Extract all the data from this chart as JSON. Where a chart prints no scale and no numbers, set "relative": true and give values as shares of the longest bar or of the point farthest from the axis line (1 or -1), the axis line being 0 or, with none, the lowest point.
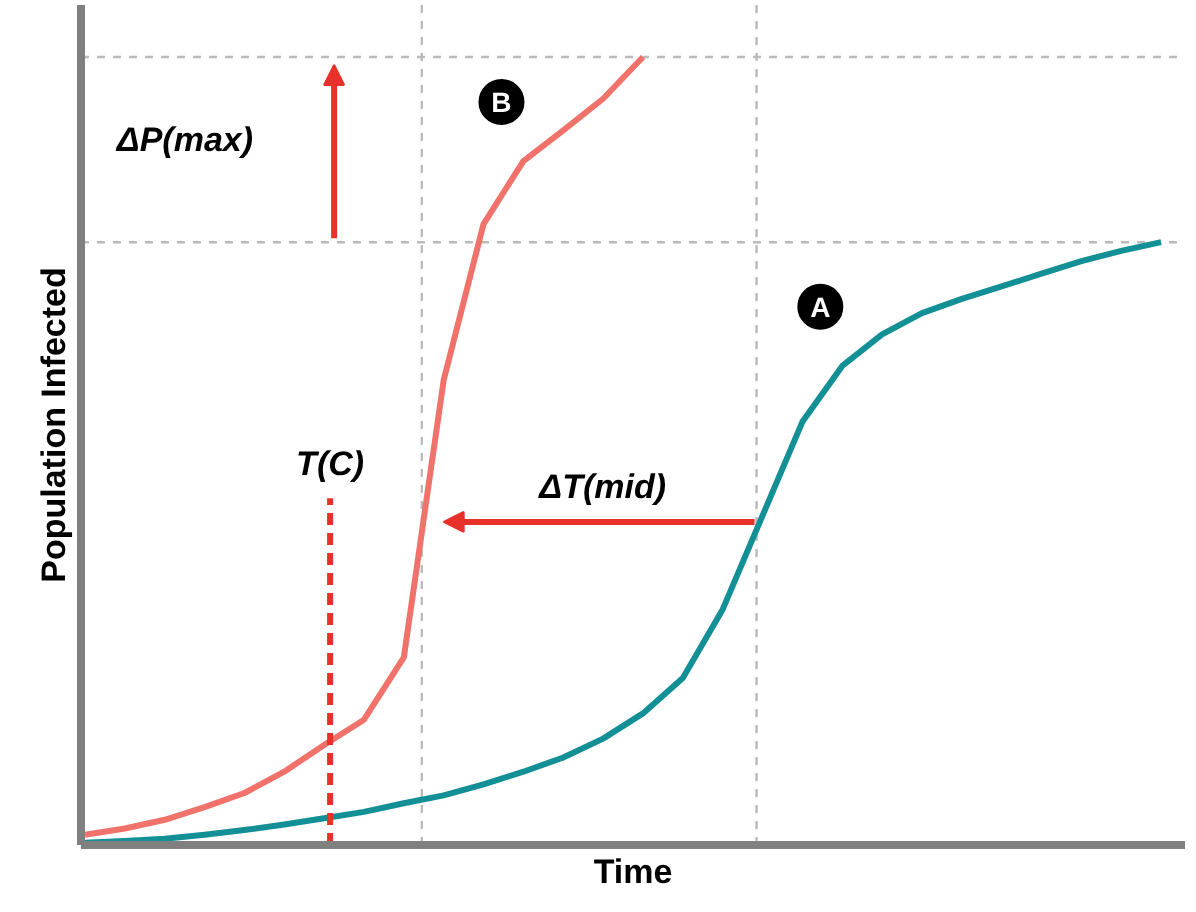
{
  "chart_data": {
    "type": "line",
    "relative": true,
    "xlabel": "Time",
    "ylabel": "Population Infected",
    "categories": [
      null,
      null,
      null,
      null,
      null,
      null,
      null,
      null,
      null,
      null,
      null,
      null,
      null,
      null,
      null,
      null,
      null,
      null,
      null,
      null,
      null,
      null,
      null,
      null,
      null,
      null,
      null,
      null
    ],
    "series": [
      {
        "name": "A",
        "color": "#138f96",
        "values": [
          0.003,
          0.005,
          0.008,
          0.013,
          0.019,
          0.026,
          0.034,
          0.042,
          0.053,
          0.063,
          0.077,
          0.093,
          0.111,
          0.135,
          0.167,
          0.212,
          0.299,
          0.418,
          0.537,
          0.608,
          0.648,
          0.675,
          0.693,
          0.709,
          0.725,
          0.741,
          0.754,
          0.765
        ]
      },
      {
        "name": "B",
        "color": "#f0726a",
        "values": [
          0.013,
          0.021,
          0.032,
          0.048,
          0.066,
          0.093,
          0.127,
          0.159,
          0.238,
          0.59,
          0.788,
          0.868,
          0.907,
          0.947,
          1.0,
          null,
          null,
          null,
          null,
          null,
          null,
          null,
          null,
          null,
          null,
          null,
          null,
          null
        ]
      }
    ],
    "annotations": [
      "ΔP(max)",
      "ΔT(mid)",
      "T(C)"
    ],
    "line_style": "solid",
    "marker": "none"
  }
}
